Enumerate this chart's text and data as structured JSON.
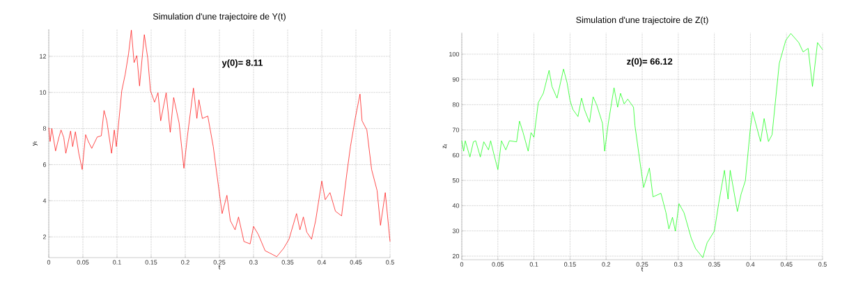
{
  "chart_data": [
    {
      "type": "line",
      "title": "Simulation d'une trajectoire de Y(t)",
      "xlabel": "t",
      "ylabel": "y$_{t}$",
      "annotations": [
        "**y(0)=   8.11**"
      ],
      "color": "#ff0000",
      "grid": true,
      "xlim": [
        0,
        0.5
      ],
      "ylim": [
        0.85,
        13.5
      ],
      "xticks": [
        0,
        0.05,
        0.1,
        0.15,
        0.2,
        0.25,
        0.3,
        0.35,
        0.4,
        0.45,
        0.5
      ],
      "yticks": [
        2,
        4,
        6,
        8,
        10,
        12
      ],
      "x": [
        0,
        0.002,
        0.0045,
        0.01,
        0.015,
        0.018,
        0.022,
        0.025,
        0.032,
        0.035,
        0.039,
        0.044,
        0.049,
        0.054,
        0.058,
        0.063,
        0.071,
        0.077,
        0.081,
        0.085,
        0.092,
        0.096,
        0.099,
        0.107,
        0.112,
        0.117,
        0.121,
        0.125,
        0.129,
        0.133,
        0.14,
        0.145,
        0.149,
        0.155,
        0.16,
        0.164,
        0.172,
        0.178,
        0.183,
        0.191,
        0.198,
        0.203,
        0.212,
        0.217,
        0.22,
        0.225,
        0.233,
        0.241,
        0.249,
        0.254,
        0.261,
        0.266,
        0.273,
        0.278,
        0.286,
        0.295,
        0.3,
        0.307,
        0.317,
        0.324,
        0.334,
        0.344,
        0.352,
        0.363,
        0.368,
        0.373,
        0.378,
        0.385,
        0.391,
        0.4,
        0.405,
        0.412,
        0.42,
        0.429,
        0.437,
        0.442,
        0.449,
        0.456,
        0.459,
        0.466,
        0.473,
        0.481,
        0.486,
        0.493,
        0.5
      ],
      "values": [
        8.05,
        7.28,
        8.0,
        6.76,
        7.53,
        7.92,
        7.5,
        6.63,
        7.86,
        7.0,
        7.82,
        6.63,
        5.73,
        7.66,
        7.28,
        6.9,
        7.53,
        7.6,
        9.0,
        8.43,
        6.63,
        7.92,
        7.0,
        10.1,
        11.0,
        12.17,
        13.45,
        11.65,
        12.04,
        10.36,
        13.2,
        11.9,
        10.1,
        9.46,
        9.98,
        8.43,
        9.98,
        7.79,
        9.72,
        8.3,
        5.8,
        7.53,
        10.24,
        8.56,
        9.59,
        8.56,
        8.69,
        7.0,
        4.7,
        3.29,
        4.3,
        2.9,
        2.39,
        3.1,
        1.74,
        1.61,
        2.58,
        2.13,
        1.23,
        1.1,
        0.9,
        1.36,
        1.87,
        3.29,
        2.39,
        3.1,
        2.26,
        1.87,
        2.9,
        5.09,
        4.06,
        4.45,
        3.42,
        3.16,
        5.6,
        7.0,
        8.56,
        9.91,
        8.43,
        7.92,
        5.73,
        4.57,
        2.64,
        4.45,
        1.74
      ]
    },
    {
      "type": "line",
      "title": "Simulation d'une trajectoire de Z(t)",
      "xlabel": "t",
      "ylabel": "z$_{t}$",
      "annotations": [
        "**z(0)= 66.12**"
      ],
      "color": "#00ff00",
      "grid": true,
      "xlim": [
        0,
        0.5
      ],
      "ylim": [
        18.6,
        108.5
      ],
      "xticks": [
        0,
        0.05,
        0.1,
        0.15,
        0.2,
        0.25,
        0.3,
        0.35,
        0.4,
        0.45,
        0.5
      ],
      "yticks": [
        20,
        30,
        40,
        50,
        60,
        70,
        80,
        90,
        100
      ],
      "x": [
        0,
        0.0026,
        0.0048,
        0.0113,
        0.0161,
        0.0193,
        0.0257,
        0.0305,
        0.037,
        0.04,
        0.045,
        0.05,
        0.055,
        0.061,
        0.066,
        0.076,
        0.08,
        0.085,
        0.092,
        0.096,
        0.1,
        0.106,
        0.113,
        0.121,
        0.125,
        0.132,
        0.137,
        0.141,
        0.146,
        0.15,
        0.154,
        0.161,
        0.166,
        0.17,
        0.177,
        0.182,
        0.187,
        0.195,
        0.198,
        0.203,
        0.211,
        0.216,
        0.22,
        0.225,
        0.23,
        0.238,
        0.24,
        0.247,
        0.252,
        0.26,
        0.265,
        0.276,
        0.283,
        0.287,
        0.292,
        0.296,
        0.301,
        0.308,
        0.318,
        0.324,
        0.334,
        0.34,
        0.35,
        0.356,
        0.364,
        0.369,
        0.372,
        0.382,
        0.387,
        0.393,
        0.4,
        0.403,
        0.414,
        0.419,
        0.425,
        0.43,
        0.44,
        0.449,
        0.456,
        0.467,
        0.473,
        0.48,
        0.486,
        0.493,
        0.5
      ],
      "values": [
        65.7,
        61.6,
        65.7,
        59.3,
        65.3,
        65.7,
        59.3,
        65.3,
        62.1,
        65.7,
        59.8,
        54.3,
        65.7,
        62.1,
        65.7,
        65.3,
        73.5,
        68.9,
        61.6,
        68.9,
        67.1,
        80.8,
        84.5,
        93.6,
        87.2,
        82.6,
        89.0,
        94.1,
        88.6,
        81.7,
        78.1,
        75.3,
        82.6,
        78.1,
        73.0,
        83.1,
        79.9,
        72.6,
        61.6,
        72.6,
        86.7,
        79.0,
        84.5,
        80.3,
        82.2,
        79.0,
        71.7,
        57.2,
        47.2,
        54.9,
        43.5,
        44.9,
        37.2,
        30.8,
        35.4,
        29.9,
        40.8,
        37.2,
        27.1,
        23.0,
        19.4,
        25.3,
        29.9,
        40.8,
        54.0,
        42.6,
        54.0,
        37.7,
        44.5,
        49.9,
        70.9,
        77.2,
        65.4,
        74.5,
        65.4,
        68.1,
        96.4,
        105.5,
        108.2,
        104.6,
        100.9,
        102.3,
        87.2,
        104.6,
        101.8
      ]
    }
  ]
}
